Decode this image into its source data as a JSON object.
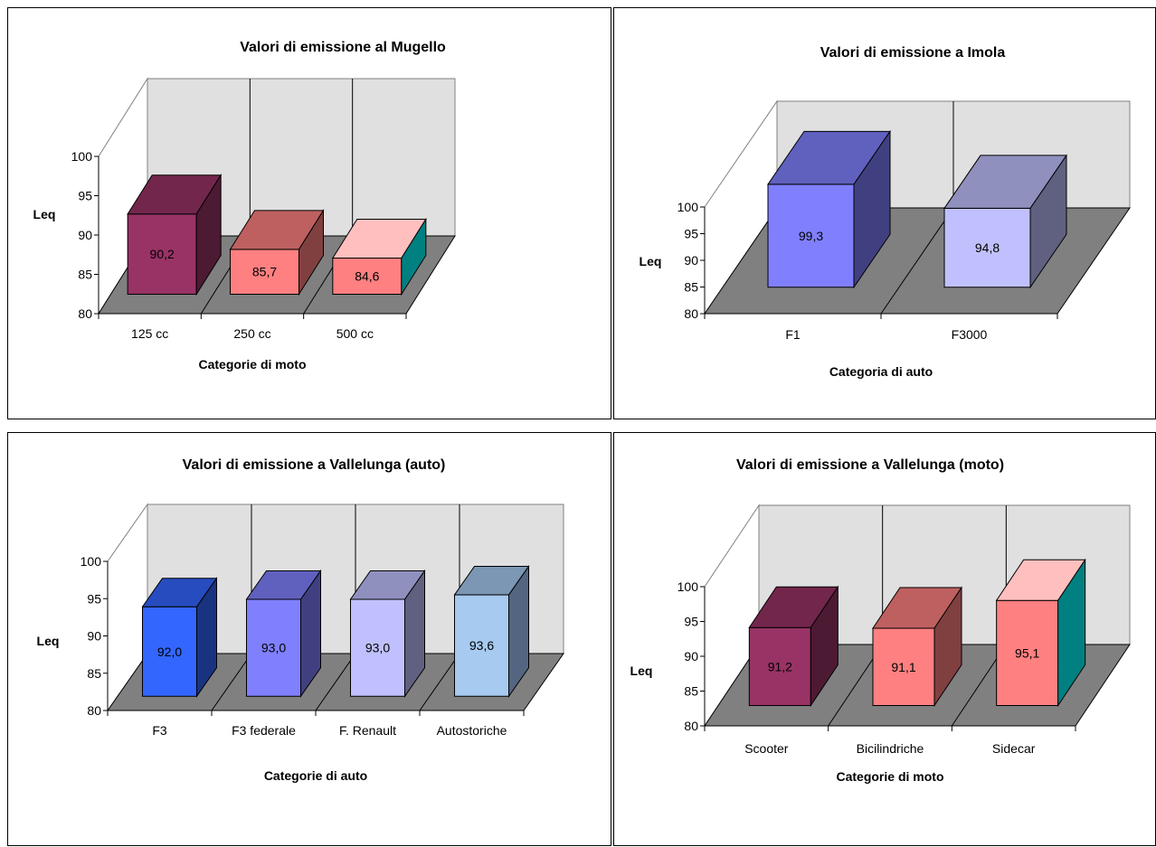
{
  "chart_data": [
    {
      "type": "bar",
      "title": "Valori di emissione al Mugello",
      "xlabel": "Categorie di moto",
      "ylabel": "Leq",
      "ylim": [
        80,
        100
      ],
      "yticks": [
        "80",
        "85",
        "90",
        "95",
        "100"
      ],
      "categories": [
        "125 cc",
        "250 cc",
        "500 cc"
      ],
      "values": [
        90.2,
        85.7,
        84.6
      ],
      "data_labels": [
        "90,2",
        "85,7",
        "84,6"
      ],
      "colors": [
        "#993366",
        "#FF8080",
        "#FF8080"
      ],
      "side_colors": [
        "#4C1A33",
        "#804040",
        "#008080"
      ],
      "top_colors": [
        "#73264C",
        "#BF6060",
        "#FFBFBF"
      ],
      "grid": true
    },
    {
      "type": "bar",
      "title": "Valori di emissione a Imola",
      "xlabel": "Categoria di auto",
      "ylabel": "Leq",
      "ylim": [
        80,
        100
      ],
      "yticks": [
        "80",
        "85",
        "90",
        "95",
        "100"
      ],
      "categories": [
        "F1",
        "F3000"
      ],
      "values": [
        99.3,
        94.8
      ],
      "data_labels": [
        "99,3",
        "94,8"
      ],
      "colors": [
        "#8080FF",
        "#C0C0FF"
      ],
      "side_colors": [
        "#404080",
        "#606080"
      ],
      "top_colors": [
        "#6060BF",
        "#9090BF"
      ],
      "grid": true
    },
    {
      "type": "bar",
      "title": "Valori di emissione a Vallelunga (auto)",
      "xlabel": "Categorie di auto",
      "ylabel": "Leq",
      "ylim": [
        80,
        100
      ],
      "yticks": [
        "80",
        "85",
        "90",
        "95",
        "100"
      ],
      "categories": [
        "F3",
        "F3 federale",
        "F. Renault",
        "Autostoriche"
      ],
      "values": [
        92.0,
        93.0,
        93.0,
        93.6
      ],
      "data_labels": [
        "92,0",
        "93,0",
        "93,0",
        "93,6"
      ],
      "colors": [
        "#3366FF",
        "#8080FF",
        "#C0C0FF",
        "#A6CAF0"
      ],
      "side_colors": [
        "#1A3380",
        "#404080",
        "#606080",
        "#536580"
      ],
      "top_colors": [
        "#264CBF",
        "#6060BF",
        "#9090BF",
        "#7C97B4"
      ],
      "grid": true
    },
    {
      "type": "bar",
      "title": "Valori di emissione a Vallelunga (moto)",
      "xlabel": "Categorie di moto",
      "ylabel": "Leq",
      "ylim": [
        80,
        100
      ],
      "yticks": [
        "80",
        "85",
        "90",
        "95",
        "100"
      ],
      "categories": [
        "Scooter",
        "Bicilindriche",
        "Sidecar"
      ],
      "values": [
        91.2,
        91.1,
        95.1
      ],
      "data_labels": [
        "91,2",
        "91,1",
        "95,1"
      ],
      "colors": [
        "#993366",
        "#FF8080",
        "#FF8080"
      ],
      "side_colors": [
        "#4C1A33",
        "#804040",
        "#008080"
      ],
      "top_colors": [
        "#73264C",
        "#BF6060",
        "#FFBFBF"
      ],
      "grid": true
    }
  ]
}
